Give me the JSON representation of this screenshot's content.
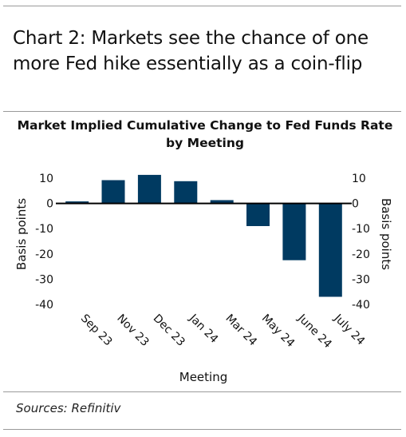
{
  "header": {
    "title": "Chart 2: Markets see the chance of one more Fed hike essentially as a coin-flip"
  },
  "footer": {
    "source": "Sources: Refinitiv"
  },
  "colors": {
    "bar": "#003a61",
    "rule": "#9a9a9a",
    "zero_line": "#000000"
  },
  "chart_data": {
    "type": "bar",
    "title": "Market Implied Cumulative Change to Fed Funds Rate by Meeting",
    "xlabel": "Meeting",
    "ylabel": "Basis points",
    "ylabel_right": "Basis points",
    "categories": [
      "Sep 23",
      "Nov 23",
      "Dec 23",
      "Jan 24",
      "Mar 24",
      "May 24",
      "June 24",
      "July 24"
    ],
    "values": [
      0.8,
      9.2,
      11.3,
      8.8,
      1.3,
      -9.0,
      -22.5,
      -37.0
    ],
    "ylim": [
      -40,
      10
    ],
    "yticks": [
      10,
      0,
      -10,
      -20,
      -30,
      -40
    ],
    "ytick_labels": [
      "10",
      "0",
      "-10",
      "-20",
      "-30",
      "-40"
    ],
    "grid": false,
    "dual_axis": true
  }
}
